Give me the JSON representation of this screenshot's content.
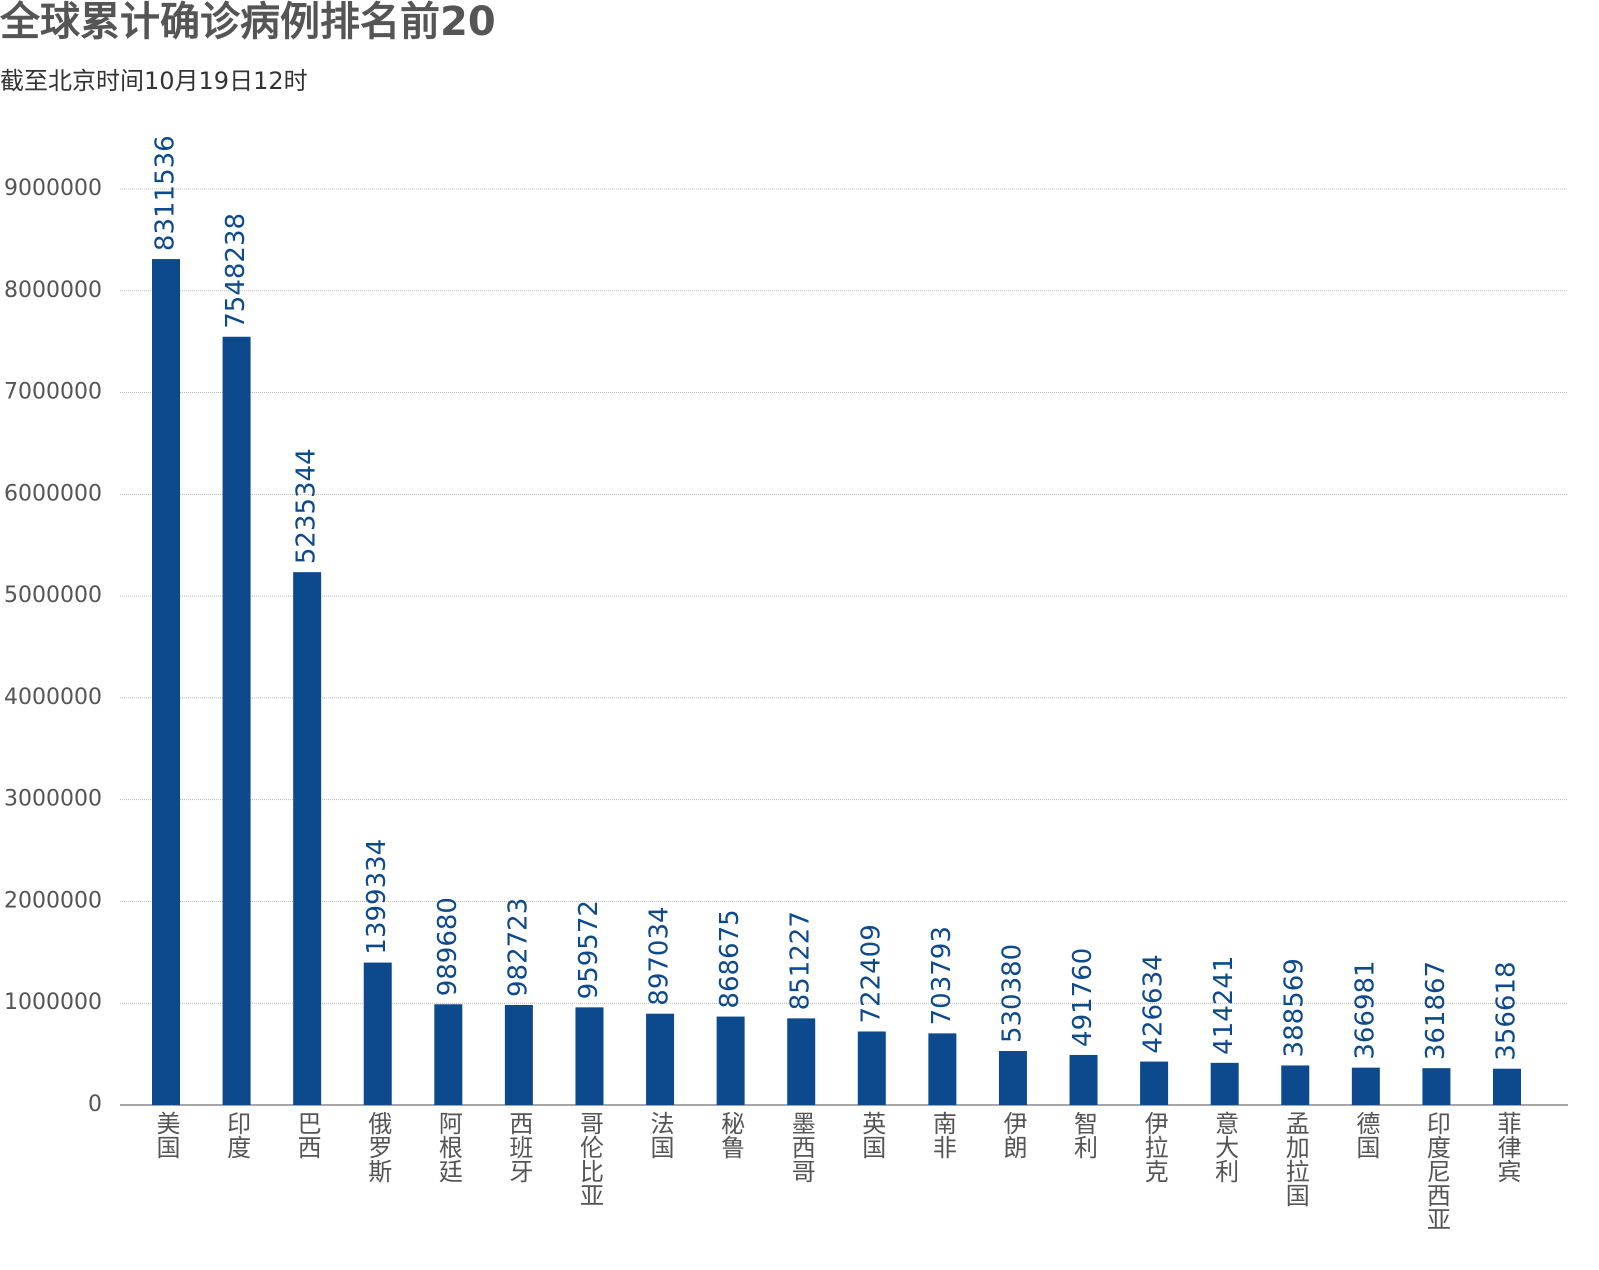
{
  "chart_data": {
    "type": "bar",
    "title": "全球累计确诊病例排名前20",
    "subtitle": "截至北京时间10月19日12时",
    "categories": [
      "美国",
      "印度",
      "巴西",
      "俄罗斯",
      "阿根廷",
      "西班牙",
      "哥伦比亚",
      "法国",
      "秘鲁",
      "墨西哥",
      "英国",
      "南非",
      "伊朗",
      "智利",
      "伊拉克",
      "意大利",
      "孟加拉国",
      "德国",
      "印度尼西亚",
      "菲律宾"
    ],
    "values": [
      8311536,
      7548238,
      5235344,
      1399334,
      989680,
      982723,
      959572,
      897034,
      868675,
      851227,
      722409,
      703793,
      530380,
      491760,
      426634,
      414241,
      388569,
      366981,
      361867,
      356618
    ],
    "color": "#0d4a8d",
    "ylim": [
      0,
      9000000
    ],
    "yticks": [
      0,
      1000000,
      2000000,
      3000000,
      4000000,
      5000000,
      6000000,
      7000000,
      8000000,
      9000000
    ],
    "grid": true
  }
}
